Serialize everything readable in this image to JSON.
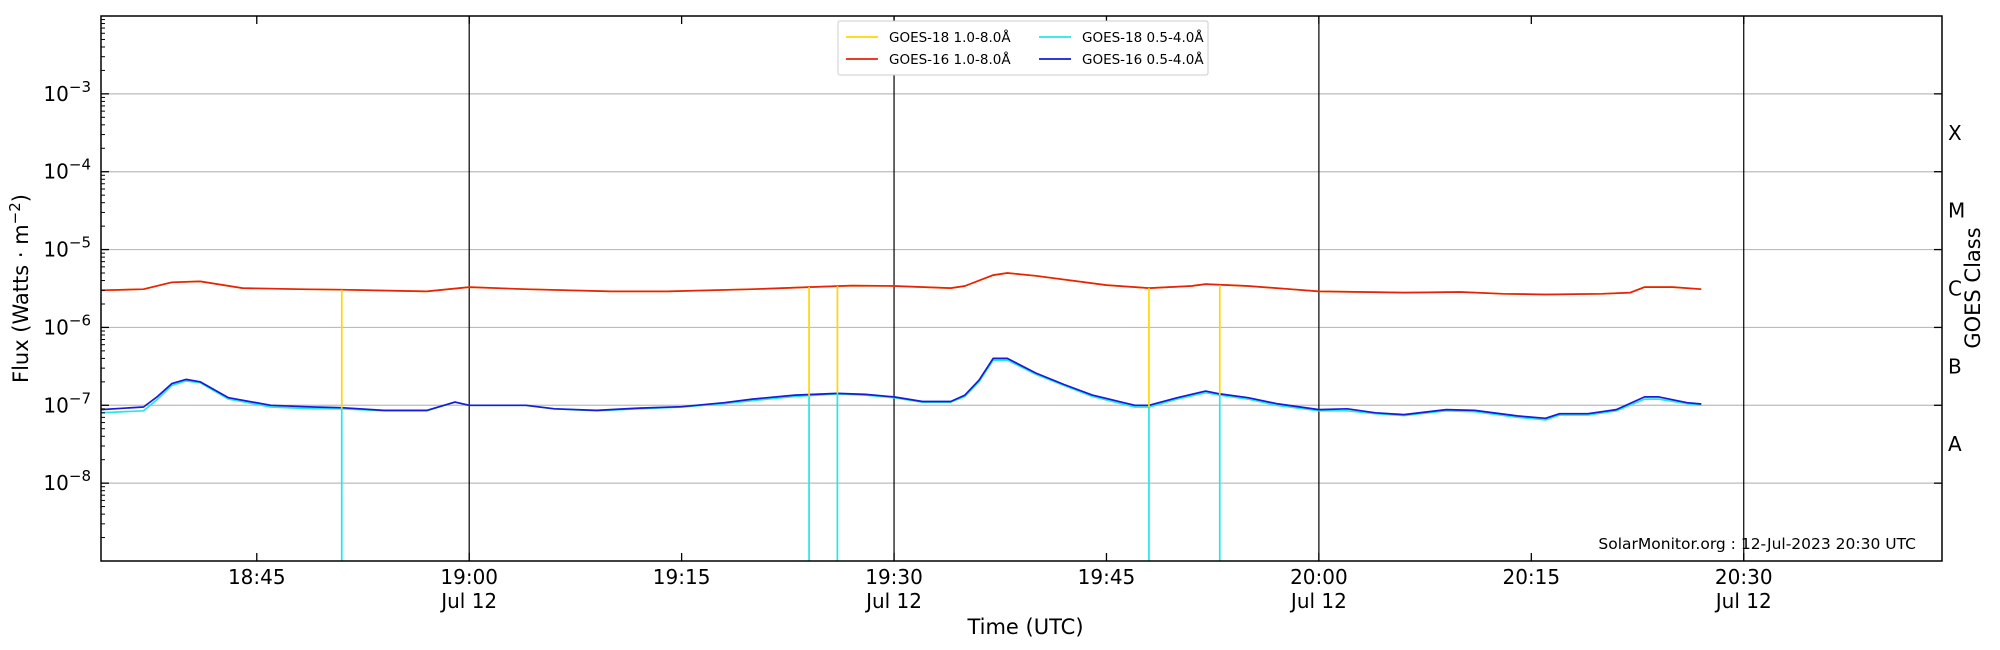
{
  "chart_data": {
    "type": "line",
    "xlabel": "Time (UTC)",
    "ylabel": "Flux (Watts · m⁻²)",
    "ylabel_right": "GOES Class",
    "y_scale": "log",
    "ylim": [
      1e-09,
      0.01
    ],
    "xlim": [
      "2023-07-12 18:34",
      "2023-07-12 20:44"
    ],
    "grid": "horizontal",
    "legend_position": "top-center",
    "x_ticks": [
      {
        "time": "2023-07-12 18:45",
        "label": "18:45",
        "sublabel": ""
      },
      {
        "time": "2023-07-12 19:00",
        "label": "19:00",
        "sublabel": "Jul 12"
      },
      {
        "time": "2023-07-12 19:15",
        "label": "19:15",
        "sublabel": ""
      },
      {
        "time": "2023-07-12 19:30",
        "label": "19:30",
        "sublabel": "Jul 12"
      },
      {
        "time": "2023-07-12 19:45",
        "label": "19:45",
        "sublabel": ""
      },
      {
        "time": "2023-07-12 20:00",
        "label": "20:00",
        "sublabel": "Jul 12"
      },
      {
        "time": "2023-07-12 20:15",
        "label": "20:15",
        "sublabel": ""
      },
      {
        "time": "2023-07-12 20:30",
        "label": "20:30",
        "sublabel": "Jul 12"
      }
    ],
    "y_ticks": [
      {
        "value": 1e-08,
        "base": "10",
        "exp": "−8"
      },
      {
        "value": 1e-07,
        "base": "10",
        "exp": "−7"
      },
      {
        "value": 1e-06,
        "base": "10",
        "exp": "−6"
      },
      {
        "value": 1e-05,
        "base": "10",
        "exp": "−5"
      },
      {
        "value": 0.0001,
        "base": "10",
        "exp": "−4"
      },
      {
        "value": 0.001,
        "base": "10",
        "exp": "−3"
      }
    ],
    "goes_classes": [
      {
        "label": "A",
        "value": 3.16e-08
      },
      {
        "label": "B",
        "value": 3.16e-07
      },
      {
        "label": "C",
        "value": 3.16e-06
      },
      {
        "label": "M",
        "value": 3.16e-05
      },
      {
        "label": "X",
        "value": 0.000316
      }
    ],
    "vertical_lines": [
      "2023-07-12 19:00",
      "2023-07-12 19:30",
      "2023-07-12 20:00",
      "2023-07-12 20:30"
    ],
    "series": [
      {
        "name": "GOES-18 1.0-8.0Å",
        "color": "#ffd700",
        "points": [
          [
            "18:34",
            3e-06
          ],
          [
            "18:37",
            3.1e-06
          ],
          [
            "18:39",
            3.8e-06
          ],
          [
            "18:41",
            3.9e-06
          ],
          [
            "18:44",
            3.2e-06
          ],
          [
            "18:48",
            3.1e-06
          ],
          [
            "18:51",
            3.05e-06
          ],
          [
            "18:57",
            2.9e-06
          ],
          [
            "19:00",
            3.3e-06
          ],
          [
            "19:04",
            3.1e-06
          ],
          [
            "19:10",
            2.9e-06
          ],
          [
            "19:14",
            2.9e-06
          ],
          [
            "19:20",
            3.1e-06
          ],
          [
            "19:24",
            3.3e-06
          ],
          [
            "19:27",
            3.45e-06
          ],
          [
            "19:30",
            3.4e-06
          ],
          [
            "19:34",
            3.2e-06
          ],
          [
            "19:35",
            3.4e-06
          ],
          [
            "19:37",
            4.7e-06
          ],
          [
            "19:38",
            5e-06
          ],
          [
            "19:40",
            4.6e-06
          ],
          [
            "19:45",
            3.5e-06
          ],
          [
            "19:48",
            3.2e-06
          ],
          [
            "19:51",
            3.4e-06
          ],
          [
            "19:52",
            3.6e-06
          ],
          [
            "19:55",
            3.4e-06
          ],
          [
            "19:58",
            3.1e-06
          ],
          [
            "20:00",
            2.9e-06
          ],
          [
            "20:06",
            2.8e-06
          ],
          [
            "20:10",
            2.85e-06
          ],
          [
            "20:13",
            2.7e-06
          ],
          [
            "20:16",
            2.65e-06
          ],
          [
            "20:20",
            2.7e-06
          ],
          [
            "20:22",
            2.8e-06
          ],
          [
            "20:23",
            3.3e-06
          ],
          [
            "20:25",
            3.3e-06
          ],
          [
            "20:27",
            3.1e-06
          ]
        ]
      },
      {
        "name": "GOES-16 1.0-8.0Å",
        "color": "#e8200c",
        "points": [
          [
            "18:34",
            3e-06
          ],
          [
            "18:37",
            3.1e-06
          ],
          [
            "18:39",
            3.8e-06
          ],
          [
            "18:41",
            3.9e-06
          ],
          [
            "18:44",
            3.2e-06
          ],
          [
            "18:48",
            3.1e-06
          ],
          [
            "18:51",
            3.05e-06
          ],
          [
            "18:57",
            2.9e-06
          ],
          [
            "19:00",
            3.3e-06
          ],
          [
            "19:04",
            3.1e-06
          ],
          [
            "19:10",
            2.9e-06
          ],
          [
            "19:14",
            2.9e-06
          ],
          [
            "19:20",
            3.1e-06
          ],
          [
            "19:24",
            3.3e-06
          ],
          [
            "19:27",
            3.45e-06
          ],
          [
            "19:30",
            3.4e-06
          ],
          [
            "19:34",
            3.2e-06
          ],
          [
            "19:35",
            3.4e-06
          ],
          [
            "19:37",
            4.7e-06
          ],
          [
            "19:38",
            5e-06
          ],
          [
            "19:40",
            4.6e-06
          ],
          [
            "19:45",
            3.5e-06
          ],
          [
            "19:48",
            3.2e-06
          ],
          [
            "19:51",
            3.4e-06
          ],
          [
            "19:52",
            3.6e-06
          ],
          [
            "19:55",
            3.4e-06
          ],
          [
            "19:58",
            3.1e-06
          ],
          [
            "20:00",
            2.9e-06
          ],
          [
            "20:06",
            2.8e-06
          ],
          [
            "20:10",
            2.85e-06
          ],
          [
            "20:13",
            2.7e-06
          ],
          [
            "20:16",
            2.65e-06
          ],
          [
            "20:20",
            2.7e-06
          ],
          [
            "20:22",
            2.8e-06
          ],
          [
            "20:23",
            3.3e-06
          ],
          [
            "20:25",
            3.3e-06
          ],
          [
            "20:27",
            3.1e-06
          ]
        ]
      },
      {
        "name": "GOES-18 0.5-4.0Å",
        "color": "#22e8e8",
        "points": [
          [
            "18:34",
            8e-08
          ],
          [
            "18:37",
            8.5e-08
          ],
          [
            "18:38",
            1.2e-07
          ],
          [
            "18:39",
            1.8e-07
          ],
          [
            "18:40",
            2.05e-07
          ],
          [
            "18:41",
            1.95e-07
          ],
          [
            "18:43",
            1.2e-07
          ],
          [
            "18:46",
            9.5e-08
          ],
          [
            "18:49",
            9e-08
          ],
          [
            "18:51",
            9e-08
          ],
          [
            "18:54",
            8.5e-08
          ],
          [
            "18:57",
            8.5e-08
          ],
          [
            "18:59",
            1.1e-07
          ],
          [
            "19:00",
            1e-07
          ],
          [
            "19:04",
            1e-07
          ],
          [
            "19:06",
            9e-08
          ],
          [
            "19:09",
            8.5e-08
          ],
          [
            "19:12",
            9e-08
          ],
          [
            "19:15",
            9.5e-08
          ],
          [
            "19:18",
            1.05e-07
          ],
          [
            "19:20",
            1.15e-07
          ],
          [
            "19:23",
            1.3e-07
          ],
          [
            "19:26",
            1.4e-07
          ],
          [
            "19:28",
            1.35e-07
          ],
          [
            "19:30",
            1.25e-07
          ],
          [
            "19:32",
            1.1e-07
          ],
          [
            "19:34",
            1.1e-07
          ],
          [
            "19:35",
            1.3e-07
          ],
          [
            "19:36",
            2e-07
          ],
          [
            "19:37",
            3.8e-07
          ],
          [
            "19:38",
            3.8e-07
          ],
          [
            "19:40",
            2.5e-07
          ],
          [
            "19:42",
            1.8e-07
          ],
          [
            "19:44",
            1.3e-07
          ],
          [
            "19:47",
            9.5e-08
          ],
          [
            "19:48",
            9.5e-08
          ],
          [
            "19:50",
            1.2e-07
          ],
          [
            "19:52",
            1.45e-07
          ],
          [
            "19:53",
            1.35e-07
          ],
          [
            "19:55",
            1.2e-07
          ],
          [
            "19:57",
            1e-07
          ],
          [
            "20:00",
            8.5e-08
          ],
          [
            "20:02",
            8.5e-08
          ],
          [
            "20:04",
            7.8e-08
          ],
          [
            "20:06",
            7.4e-08
          ],
          [
            "20:09",
            8.5e-08
          ],
          [
            "20:11",
            8.3e-08
          ],
          [
            "20:14",
            7e-08
          ],
          [
            "20:16",
            6.5e-08
          ],
          [
            "20:17",
            7.5e-08
          ],
          [
            "20:19",
            7.5e-08
          ],
          [
            "20:21",
            8.5e-08
          ],
          [
            "20:23",
            1.2e-07
          ],
          [
            "20:24",
            1.2e-07
          ],
          [
            "20:26",
            1.05e-07
          ],
          [
            "20:27",
            1e-07
          ]
        ]
      },
      {
        "name": "GOES-16 0.5-4.0Å",
        "color": "#1a1ad8",
        "points": [
          [
            "18:34",
            8.8e-08
          ],
          [
            "18:37",
            9.5e-08
          ],
          [
            "18:38",
            1.3e-07
          ],
          [
            "18:39",
            1.9e-07
          ],
          [
            "18:40",
            2.15e-07
          ],
          [
            "18:41",
            2e-07
          ],
          [
            "18:43",
            1.25e-07
          ],
          [
            "18:46",
            1e-07
          ],
          [
            "18:49",
            9.5e-08
          ],
          [
            "18:51",
            9.3e-08
          ],
          [
            "18:54",
            8.6e-08
          ],
          [
            "18:57",
            8.6e-08
          ],
          [
            "18:59",
            1.1e-07
          ],
          [
            "19:00",
            1e-07
          ],
          [
            "19:04",
            1e-07
          ],
          [
            "19:06",
            9e-08
          ],
          [
            "19:09",
            8.6e-08
          ],
          [
            "19:12",
            9.2e-08
          ],
          [
            "19:15",
            9.6e-08
          ],
          [
            "19:18",
            1.08e-07
          ],
          [
            "19:20",
            1.2e-07
          ],
          [
            "19:23",
            1.35e-07
          ],
          [
            "19:26",
            1.42e-07
          ],
          [
            "19:28",
            1.38e-07
          ],
          [
            "19:30",
            1.28e-07
          ],
          [
            "19:32",
            1.12e-07
          ],
          [
            "19:34",
            1.12e-07
          ],
          [
            "19:35",
            1.35e-07
          ],
          [
            "19:36",
            2.1e-07
          ],
          [
            "19:37",
            4e-07
          ],
          [
            "19:38",
            4e-07
          ],
          [
            "19:40",
            2.6e-07
          ],
          [
            "19:42",
            1.85e-07
          ],
          [
            "19:44",
            1.35e-07
          ],
          [
            "19:47",
            1e-07
          ],
          [
            "19:48",
            1e-07
          ],
          [
            "19:50",
            1.25e-07
          ],
          [
            "19:52",
            1.52e-07
          ],
          [
            "19:53",
            1.4e-07
          ],
          [
            "19:55",
            1.25e-07
          ],
          [
            "19:57",
            1.05e-07
          ],
          [
            "20:00",
            8.8e-08
          ],
          [
            "20:02",
            9e-08
          ],
          [
            "20:04",
            8e-08
          ],
          [
            "20:06",
            7.6e-08
          ],
          [
            "20:09",
            8.8e-08
          ],
          [
            "20:11",
            8.6e-08
          ],
          [
            "20:14",
            7.3e-08
          ],
          [
            "20:16",
            6.8e-08
          ],
          [
            "20:17",
            7.8e-08
          ],
          [
            "20:19",
            7.8e-08
          ],
          [
            "20:21",
            8.8e-08
          ],
          [
            "20:23",
            1.28e-07
          ],
          [
            "20:24",
            1.28e-07
          ],
          [
            "20:26",
            1.08e-07
          ],
          [
            "20:27",
            1.04e-07
          ]
        ]
      }
    ],
    "dropouts": [
      {
        "time": "18:51",
        "series": [
          "GOES-18 1.0-8.0Å",
          "GOES-18 0.5-4.0Å"
        ],
        "top_value": 3.05e-06,
        "mid_value": 9e-08
      },
      {
        "time": "19:24",
        "series": [
          "GOES-18 1.0-8.0Å",
          "GOES-18 0.5-4.0Å"
        ],
        "top_value": 3.3e-06,
        "mid_value": 1.3e-07
      },
      {
        "time": "19:26",
        "series": [
          "GOES-18 1.0-8.0Å",
          "GOES-18 0.5-4.0Å"
        ],
        "top_value": 3.4e-06,
        "mid_value": 1.4e-07
      },
      {
        "time": "19:48",
        "series": [
          "GOES-18 1.0-8.0Å",
          "GOES-18 0.5-4.0Å"
        ],
        "top_value": 3.2e-06,
        "mid_value": 9.5e-08
      },
      {
        "time": "19:53",
        "series": [
          "GOES-18 1.0-8.0Å",
          "GOES-18 0.5-4.0Å"
        ],
        "top_value": 3.5e-06,
        "mid_value": 1.35e-07
      }
    ],
    "annotation": "SolarMonitor.org : 12-Jul-2023 20:30 UTC"
  }
}
